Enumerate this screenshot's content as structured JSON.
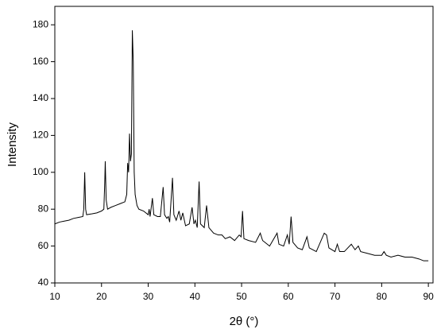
{
  "chart_data": {
    "type": "line",
    "x_label": "2θ (°)",
    "y_label": "Intensity",
    "xlim": [
      10,
      91
    ],
    "ylim": [
      40,
      190
    ],
    "xticks": [
      10,
      20,
      30,
      40,
      50,
      60,
      70,
      80,
      90
    ],
    "yticks": [
      40,
      60,
      80,
      100,
      120,
      140,
      160,
      180
    ],
    "x": [
      10,
      11,
      12,
      13,
      14,
      15,
      16,
      16.2,
      16.4,
      16.6,
      16.8,
      18,
      19,
      20,
      20.5,
      20.7,
      20.8,
      21,
      21.3,
      22,
      23,
      24,
      25,
      25.4,
      25.6,
      25.8,
      26,
      26.2,
      26.4,
      26.6,
      26.8,
      27,
      27.2,
      27.6,
      28,
      29,
      30,
      30.2,
      30.4,
      30.9,
      31.2,
      32,
      32.6,
      33.2,
      33.5,
      34,
      34.3,
      34.6,
      35.2,
      35.5,
      36,
      36.6,
      37,
      37.4,
      38,
      38.8,
      39.4,
      39.8,
      40.1,
      40.5,
      40.9,
      41.2,
      42,
      42.5,
      43,
      44,
      45,
      45.8,
      46.5,
      47.5,
      48.5,
      49.5,
      49.9,
      50.2,
      50.5,
      51.5,
      53,
      54,
      54.5,
      56,
      57.6,
      58,
      59,
      59.8,
      60.2,
      60.6,
      61,
      62,
      63,
      64,
      64.5,
      66,
      67.7,
      68.2,
      68.7,
      70,
      70.5,
      71,
      72,
      73.5,
      74.3,
      75,
      75.5,
      77,
      78.5,
      80,
      80.5,
      81,
      82,
      83.5,
      85,
      86.5,
      88,
      89,
      90
    ],
    "series": [
      {
        "color": "#000000",
        "values": [
          72,
          73,
          73.5,
          74,
          75,
          75.5,
          76,
          80,
          100,
          80,
          77,
          77.5,
          78,
          79,
          80,
          95,
          106,
          85,
          80,
          81,
          82,
          83,
          84,
          88,
          105,
          100,
          121,
          106,
          110,
          177,
          160,
          100,
          88,
          82,
          80,
          79,
          77,
          80,
          76,
          86,
          77,
          76,
          76,
          92,
          77,
          75,
          76,
          73,
          97,
          77,
          74,
          79,
          74,
          78,
          71,
          72,
          81,
          72,
          74,
          70,
          95,
          72,
          70,
          82,
          70,
          67,
          66,
          66,
          64,
          65,
          63,
          66,
          65,
          79,
          64,
          63,
          62,
          67,
          63,
          60,
          67,
          61,
          60,
          66,
          61,
          76,
          62,
          59,
          58,
          65,
          59,
          57,
          67,
          66,
          59,
          57,
          61,
          57,
          57,
          61,
          58,
          60,
          57,
          56,
          55,
          55,
          57,
          55,
          54,
          55,
          54,
          54,
          53,
          52,
          52
        ]
      }
    ]
  }
}
